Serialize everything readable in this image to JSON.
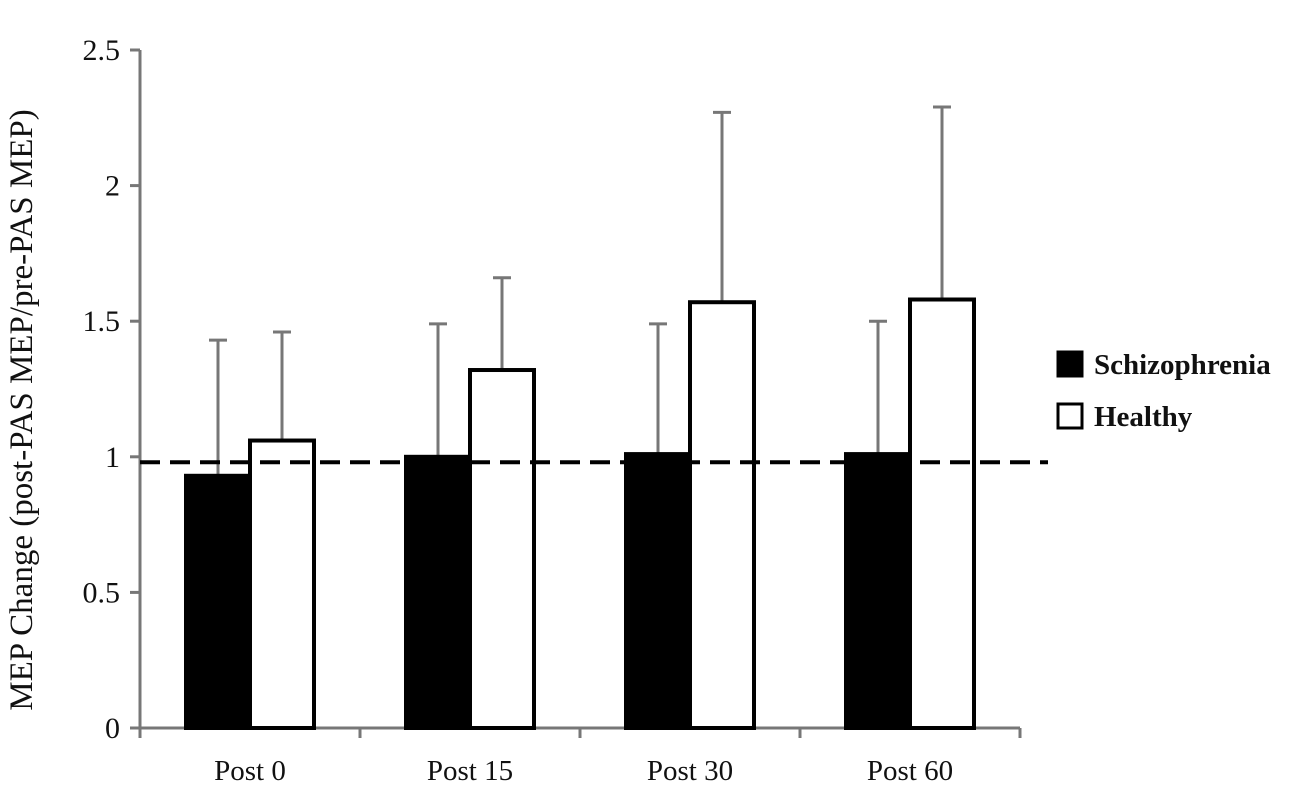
{
  "chart_data": {
    "type": "bar",
    "title": "",
    "xlabel": "",
    "ylabel": "MEP Change (post-PAS MEP/pre-PAS MEP)",
    "categories": [
      "Post 0",
      "Post 15",
      "Post 30",
      "Post 60"
    ],
    "series": [
      {
        "name": "Schizophrenia",
        "values": [
          0.93,
          1.0,
          1.01,
          1.01
        ],
        "error_upper": [
          1.43,
          1.49,
          1.49,
          1.5
        ],
        "fill": "#000000"
      },
      {
        "name": "Healthy",
        "values": [
          1.06,
          1.32,
          1.57,
          1.58
        ],
        "error_upper": [
          1.46,
          1.66,
          2.27,
          2.29
        ],
        "fill": "#ffffff"
      }
    ],
    "ylim": [
      0,
      2.5
    ],
    "yticks": [
      0,
      0.5,
      1,
      1.5,
      2,
      2.5
    ],
    "ytick_labels": [
      "0",
      "0.5",
      "1",
      "1.5",
      "2",
      "2.5"
    ],
    "reference_line": {
      "y": 0.98,
      "style": "dashed"
    },
    "grid": false,
    "legend_position": "right"
  },
  "colors": {
    "bar_outline": "#000000",
    "axis": "#777777",
    "error_bar": "#777777"
  }
}
